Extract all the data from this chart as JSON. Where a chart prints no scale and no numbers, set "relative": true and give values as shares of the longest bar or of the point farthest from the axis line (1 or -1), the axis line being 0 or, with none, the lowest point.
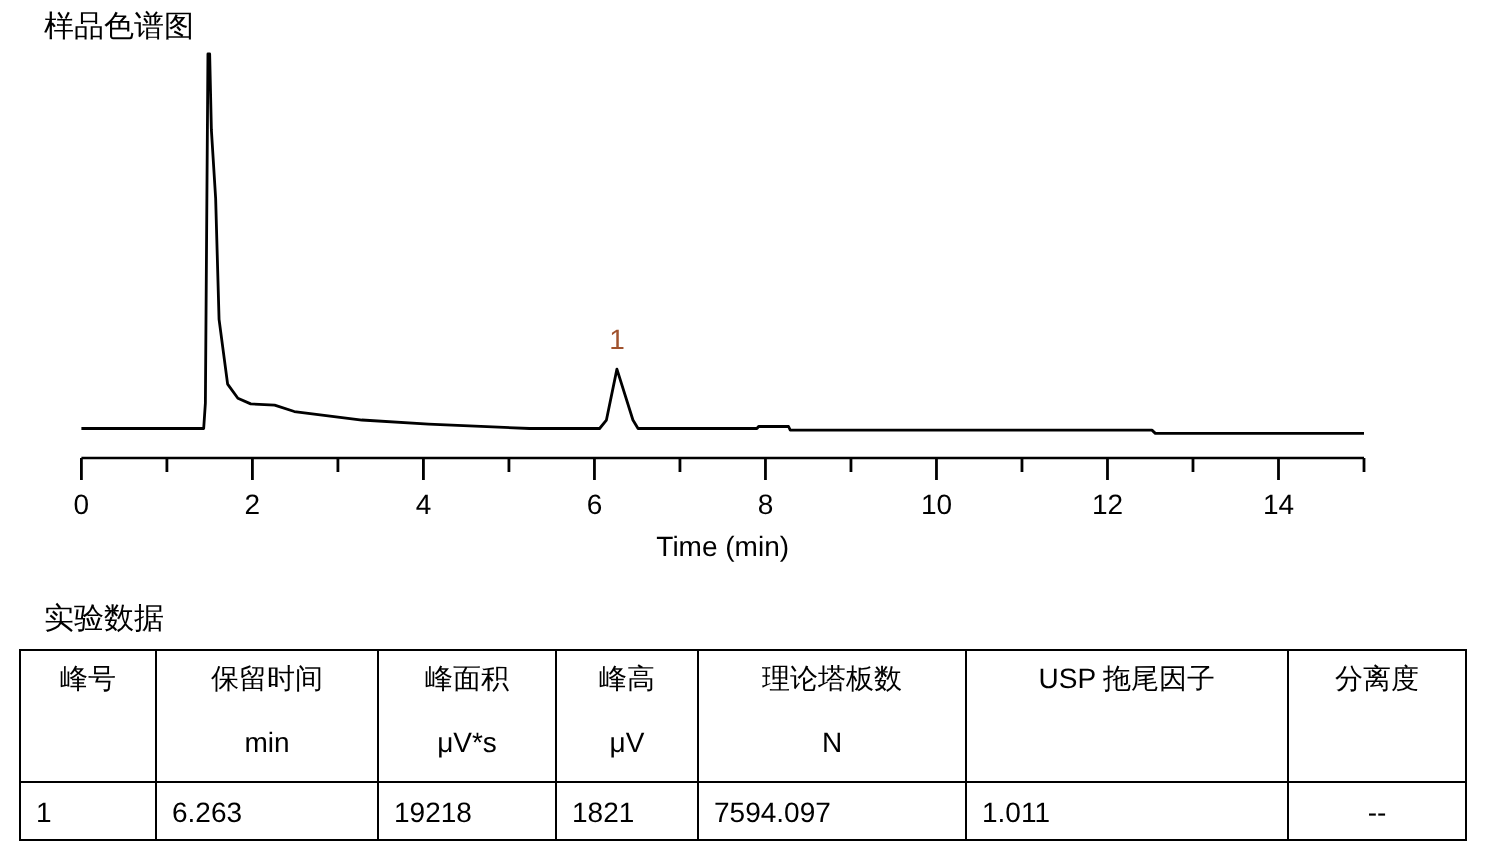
{
  "chart_data": [
    {
      "type": "line",
      "title": "样品色谱图",
      "xlabel": "Time (min)",
      "relative": true,
      "xlim": [
        0,
        15
      ],
      "xticks": [
        0,
        {
          "value": 1,
          "label": null
        },
        2,
        {
          "value": 3,
          "label": null
        },
        4,
        {
          "value": 5,
          "label": null
        },
        6,
        {
          "value": 7,
          "label": null
        },
        8,
        {
          "value": 9,
          "label": null
        },
        10,
        {
          "value": 11,
          "label": null
        },
        12,
        {
          "value": 13,
          "label": null
        },
        14,
        {
          "value": 15,
          "label": null
        }
      ],
      "series": [
        {
          "color": "#000000",
          "x": [
            0,
            1.43,
            1.45,
            1.48,
            1.5,
            1.52,
            1.57,
            1.61,
            1.71,
            1.83,
            1.98,
            2.26,
            2.49,
            3.28,
            4.06,
            5.24,
            6.06,
            6.14,
            6.263,
            6.45,
            6.51,
            7.9,
            7.92,
            8.27,
            8.29,
            12.52,
            12.56,
            15
          ],
          "values": [
            0.073,
            0.073,
            0.136,
            1,
            1,
            0.812,
            0.643,
            0.343,
            0.183,
            0.148,
            0.134,
            0.131,
            0.115,
            0.094,
            0.084,
            0.073,
            0.073,
            0.094,
            0.22,
            0.094,
            0.073,
            0.073,
            0.078,
            0.078,
            0.069,
            0.069,
            0.061,
            0.061
          ]
        }
      ],
      "annotations": [
        {
          "text": "1",
          "x": 6.263,
          "y": 0.22
        }
      ]
    },
    {
      "type": "other",
      "title": "实验数据",
      "annotations": [
        "峰号",
        "保留时间\nmin",
        "峰面积\nμV*s",
        "峰高\nμV",
        "理论塔板数\nN",
        "USP 拖尾因子",
        "分离度",
        "1",
        "6.263",
        "19218",
        "1821",
        "7594.097",
        "1.011",
        "--"
      ]
    }
  ]
}
